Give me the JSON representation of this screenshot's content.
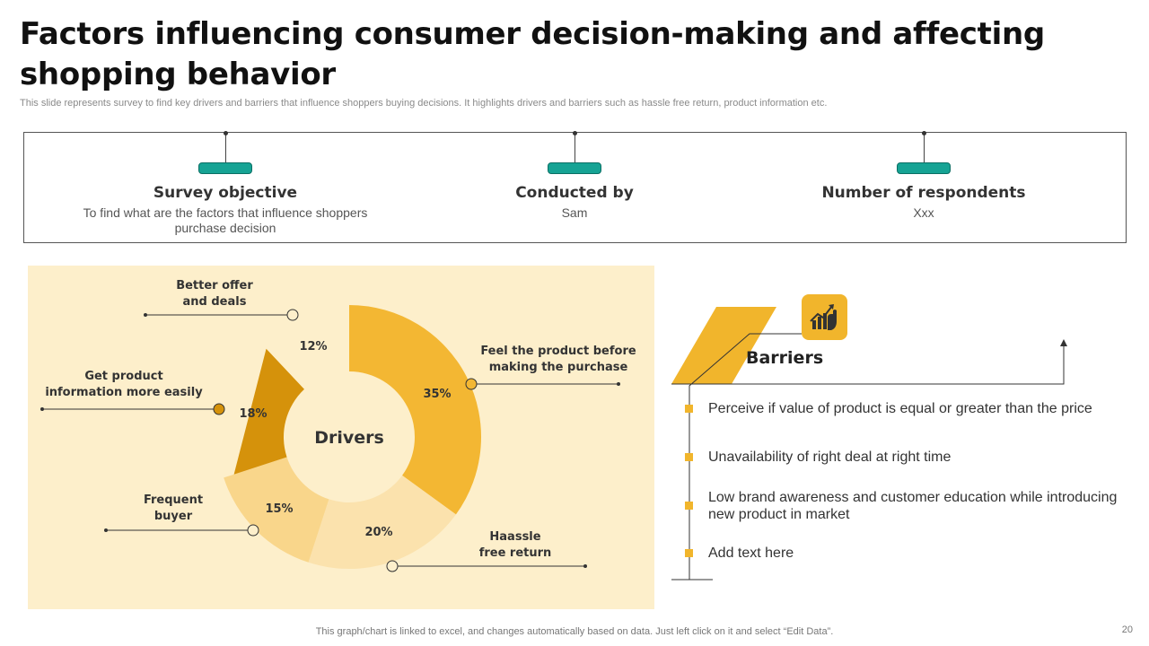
{
  "title": "Factors influencing consumer decision-making and affecting shopping behavior",
  "subtitle": "This slide represents survey to find key drivers and barriers that influence shoppers buying decisions. It highlights drivers and barriers such as hassle free return, product information etc.",
  "survey": [
    {
      "heading": "Survey objective",
      "text": "To find what are the factors that influence shoppers purchase decision"
    },
    {
      "heading": "Conducted by",
      "text": "Sam"
    },
    {
      "heading": "Number of respondents",
      "text": "Xxx"
    }
  ],
  "chart_data": {
    "type": "pie",
    "subtype": "donut",
    "title": "Drivers",
    "start_angle_deg": 0,
    "direction": "clockwise",
    "slices": [
      {
        "label": "Feel the product before making the purchase",
        "value": 35,
        "value_label": "35%",
        "color": "#f3b733"
      },
      {
        "label": "Haassle free return",
        "value": 20,
        "value_label": "20%",
        "color": "#fbe2ad"
      },
      {
        "label": "Frequent buyer",
        "value": 15,
        "value_label": "15%",
        "color": "#f9d68b"
      },
      {
        "label": "Get product information more easily",
        "value": 18,
        "value_label": "18%",
        "color": "#d5920b"
      },
      {
        "label": "Better offer and deals",
        "value": 12,
        "value_label": "12%",
        "color": "#fdefcb"
      }
    ]
  },
  "barriers": {
    "title": "Barriers",
    "icon": "growth-chart-hand-icon",
    "items": [
      "Perceive if value of product is equal or greater than the price",
      "Unavailability  of right deal at right time",
      "Low brand awareness and customer education while introducing new product in market",
      "Add text here"
    ]
  },
  "colors": {
    "accent": "#f1b52c",
    "teal": "#16a394",
    "panel": "#fdefcb"
  },
  "footnote": "This graph/chart is linked to excel,  and changes automatically based on data. Just left click on it and select “Edit Data”.",
  "page_number": "20"
}
